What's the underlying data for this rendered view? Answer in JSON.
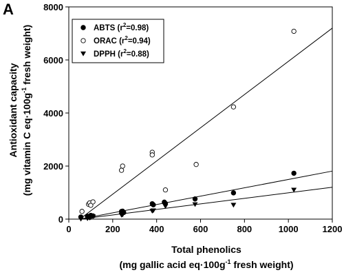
{
  "panel_label": "A",
  "chart_data": {
    "type": "scatter",
    "xlabel": "Total phenolics",
    "xlabel_units": [
      "(mg gallic acid eq·100g",
      "-1",
      " fresh weight)"
    ],
    "ylabel": "Antioxidant capacity",
    "ylabel_units": [
      "(mg vitamin C eq·100g",
      "-1",
      " fresh weight)"
    ],
    "xlim": [
      0,
      1200
    ],
    "ylim": [
      0,
      8000
    ],
    "xticks": [
      0,
      200,
      400,
      600,
      800,
      1000,
      1200
    ],
    "yticks": [
      0,
      2000,
      4000,
      6000,
      8000
    ],
    "grid": false,
    "legend_position": "top-left",
    "series": [
      {
        "name": "ABTS",
        "r2_prefix": " (r",
        "r2_sup": "2",
        "r2_value": "=0.98)",
        "marker": "filled-circle",
        "points": [
          [
            55,
            80
          ],
          [
            85,
            110
          ],
          [
            95,
            70
          ],
          [
            100,
            140
          ],
          [
            110,
            120
          ],
          [
            240,
            290
          ],
          [
            245,
            300
          ],
          [
            250,
            250
          ],
          [
            380,
            580
          ],
          [
            385,
            540
          ],
          [
            435,
            640
          ],
          [
            440,
            590
          ],
          [
            575,
            760
          ],
          [
            750,
            990
          ],
          [
            1025,
            1730
          ]
        ],
        "fit": [
          [
            50,
            0
          ],
          [
            1200,
            1810
          ]
        ]
      },
      {
        "name": "ORAC",
        "r2_prefix": " (r",
        "r2_sup": "2",
        "r2_value": "=0.94)",
        "marker": "open-circle",
        "points": [
          [
            60,
            290
          ],
          [
            90,
            560
          ],
          [
            95,
            610
          ],
          [
            100,
            520
          ],
          [
            110,
            650
          ],
          [
            240,
            1840
          ],
          [
            245,
            2000
          ],
          [
            380,
            2520
          ],
          [
            380,
            2420
          ],
          [
            440,
            1100
          ],
          [
            580,
            2060
          ],
          [
            750,
            4230
          ],
          [
            1025,
            7080
          ]
        ],
        "fit": [
          [
            50,
            0
          ],
          [
            1200,
            7200
          ]
        ]
      },
      {
        "name": "DPPH",
        "r2_prefix": " (r",
        "r2_sup": "2",
        "r2_value": "=0.88)",
        "marker": "filled-triangle-down",
        "points": [
          [
            55,
            0
          ],
          [
            85,
            20
          ],
          [
            95,
            40
          ],
          [
            100,
            60
          ],
          [
            110,
            100
          ],
          [
            240,
            150
          ],
          [
            245,
            160
          ],
          [
            380,
            300
          ],
          [
            385,
            320
          ],
          [
            440,
            480
          ],
          [
            575,
            550
          ],
          [
            750,
            530
          ],
          [
            1025,
            1100
          ]
        ],
        "fit": [
          [
            50,
            0
          ],
          [
            1200,
            1200
          ]
        ]
      }
    ]
  }
}
